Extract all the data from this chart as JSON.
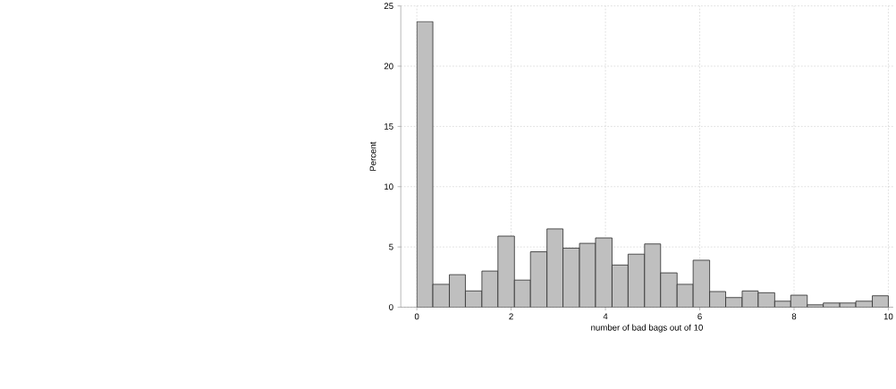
{
  "chart_data": {
    "type": "histogram",
    "xlabel": "number of bad bags out of 10",
    "ylabel": "Percent",
    "bins": [
      0,
      0.34,
      0.69,
      1.03,
      1.38,
      1.72,
      2.07,
      2.41,
      2.76,
      3.1,
      3.45,
      3.79,
      4.14,
      4.48,
      4.83,
      5.17,
      5.52,
      5.86,
      6.21,
      6.55,
      6.9,
      7.24,
      7.59,
      7.93,
      8.28,
      8.62,
      8.97,
      9.31,
      9.66,
      10
    ],
    "values": [
      23.7,
      1.9,
      2.7,
      1.35,
      3.0,
      5.9,
      2.25,
      4.6,
      6.5,
      4.9,
      5.3,
      5.75,
      3.5,
      4.4,
      5.25,
      2.85,
      1.9,
      3.9,
      1.3,
      0.8,
      1.35,
      1.2,
      0.5,
      1.0,
      0.2,
      0.35,
      0.35,
      0.5,
      0.95
    ],
    "color": "#bfbfbf",
    "xlim": [
      -0.34,
      10.1
    ],
    "ylim": [
      0,
      25
    ],
    "xticks": [
      0,
      2,
      4,
      6,
      8,
      10
    ],
    "yticks": [
      0,
      5,
      10,
      15,
      20,
      25
    ],
    "grid": true
  }
}
